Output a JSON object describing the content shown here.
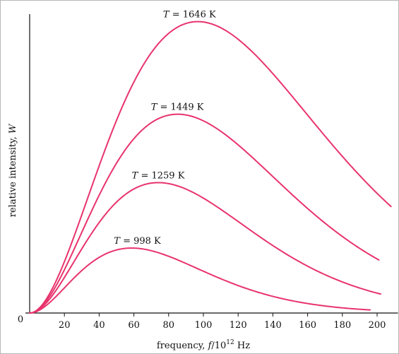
{
  "chart_data": {
    "type": "line",
    "xlabel_html": "frequency, <tspan font-style=\"italic\">f</tspan>/10<tspan dy=\"-6\" font-size=\"9\">12</tspan><tspan dy=\"6\"> Hz</tspan>",
    "ylabel_html": "relative intensity, <tspan font-style=\"italic\">W</tspan>",
    "zero_label": "0",
    "xlim": [
      0,
      212
    ],
    "ylim": [
      0,
      1.0
    ],
    "x_ticks": [
      20,
      40,
      60,
      80,
      100,
      120,
      140,
      160,
      180,
      200
    ],
    "curve_color": "#e8336d",
    "series": [
      {
        "label_T": "T",
        "label_value": "= 1646 K",
        "temperature_k": 1646,
        "x_max": 208,
        "label_at_x": 92
      },
      {
        "label_T": "T",
        "label_value": "= 1449 K",
        "temperature_k": 1449,
        "x_max": 201,
        "label_at_x": 85
      },
      {
        "label_T": "T",
        "label_value": "= 1259 K",
        "temperature_k": 1259,
        "x_max": 202,
        "label_at_x": 74
      },
      {
        "label_T": "T",
        "label_value": "= 998 K",
        "temperature_k": 998,
        "x_max": 196,
        "label_at_x": 62
      }
    ]
  }
}
